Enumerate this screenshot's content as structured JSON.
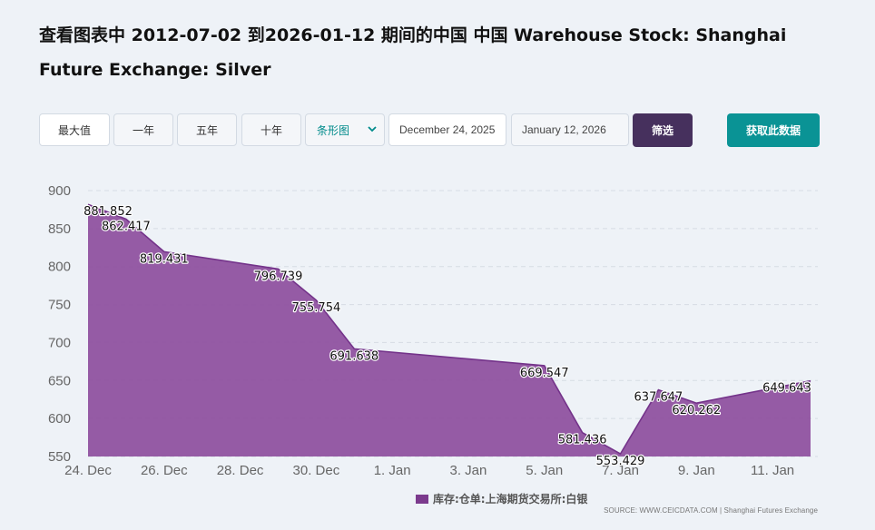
{
  "title": "查看图表中 2012-07-02 到2026-01-12 期间的中国 中国 Warehouse Stock: Shanghai Future Exchange: Silver",
  "controls": {
    "range_buttons": [
      "最大值",
      "一年",
      "五年",
      "十年"
    ],
    "chart_type_selected": "条形图",
    "date_from": "December 24, 2025",
    "date_to": "January 12, 2026",
    "filter_label": "筛选",
    "get_data_label": "获取此数据"
  },
  "colors": {
    "area_fill": "#8f52a0",
    "area_stroke": "#74338a",
    "filter_button": "#46305d",
    "get_data_button": "#0a9395"
  },
  "legend_label": "库存:仓单:上海期货交易所:白银",
  "source": "SOURCE: WWW.CEICDATA.COM | Shanghai Futures Exchange",
  "chart_data": {
    "type": "area",
    "title": "",
    "xlabel": "",
    "ylabel": "",
    "x": [
      "2025-12-24",
      "2025-12-25",
      "2025-12-26",
      "2025-12-29",
      "2025-12-30",
      "2025-12-31",
      "2026-01-05",
      "2026-01-06",
      "2026-01-07",
      "2026-01-08",
      "2026-01-09",
      "2026-01-12"
    ],
    "series": [
      {
        "name": "库存:仓单:上海期货交易所:白银",
        "values": [
          881.852,
          862.417,
          819.431,
          796.739,
          755.754,
          691.638,
          669.547,
          581.436,
          553.429,
          637.647,
          620.262,
          649.643
        ],
        "labels": [
          "881.852",
          "862.417",
          "819.431",
          "796.739",
          "755.754",
          "691.638",
          "669.547",
          "581.436",
          "553.429",
          "637.647",
          "620.262",
          "649.643"
        ]
      }
    ],
    "ylim": [
      550,
      900
    ],
    "yticks": [
      550,
      600,
      650,
      700,
      750,
      800,
      850,
      900
    ],
    "xticks": [
      {
        "date": "2025-12-24",
        "label": "24. Dec"
      },
      {
        "date": "2025-12-26",
        "label": "26. Dec"
      },
      {
        "date": "2025-12-28",
        "label": "28. Dec"
      },
      {
        "date": "2025-12-30",
        "label": "30. Dec"
      },
      {
        "date": "2026-01-01",
        "label": "1. Jan"
      },
      {
        "date": "2026-01-03",
        "label": "3. Jan"
      },
      {
        "date": "2026-01-05",
        "label": "5. Jan"
      },
      {
        "date": "2026-01-07",
        "label": "7. Jan"
      },
      {
        "date": "2026-01-09",
        "label": "9. Jan"
      },
      {
        "date": "2026-01-11",
        "label": "11. Jan"
      }
    ],
    "grid": true,
    "legend_position": "bottom"
  }
}
